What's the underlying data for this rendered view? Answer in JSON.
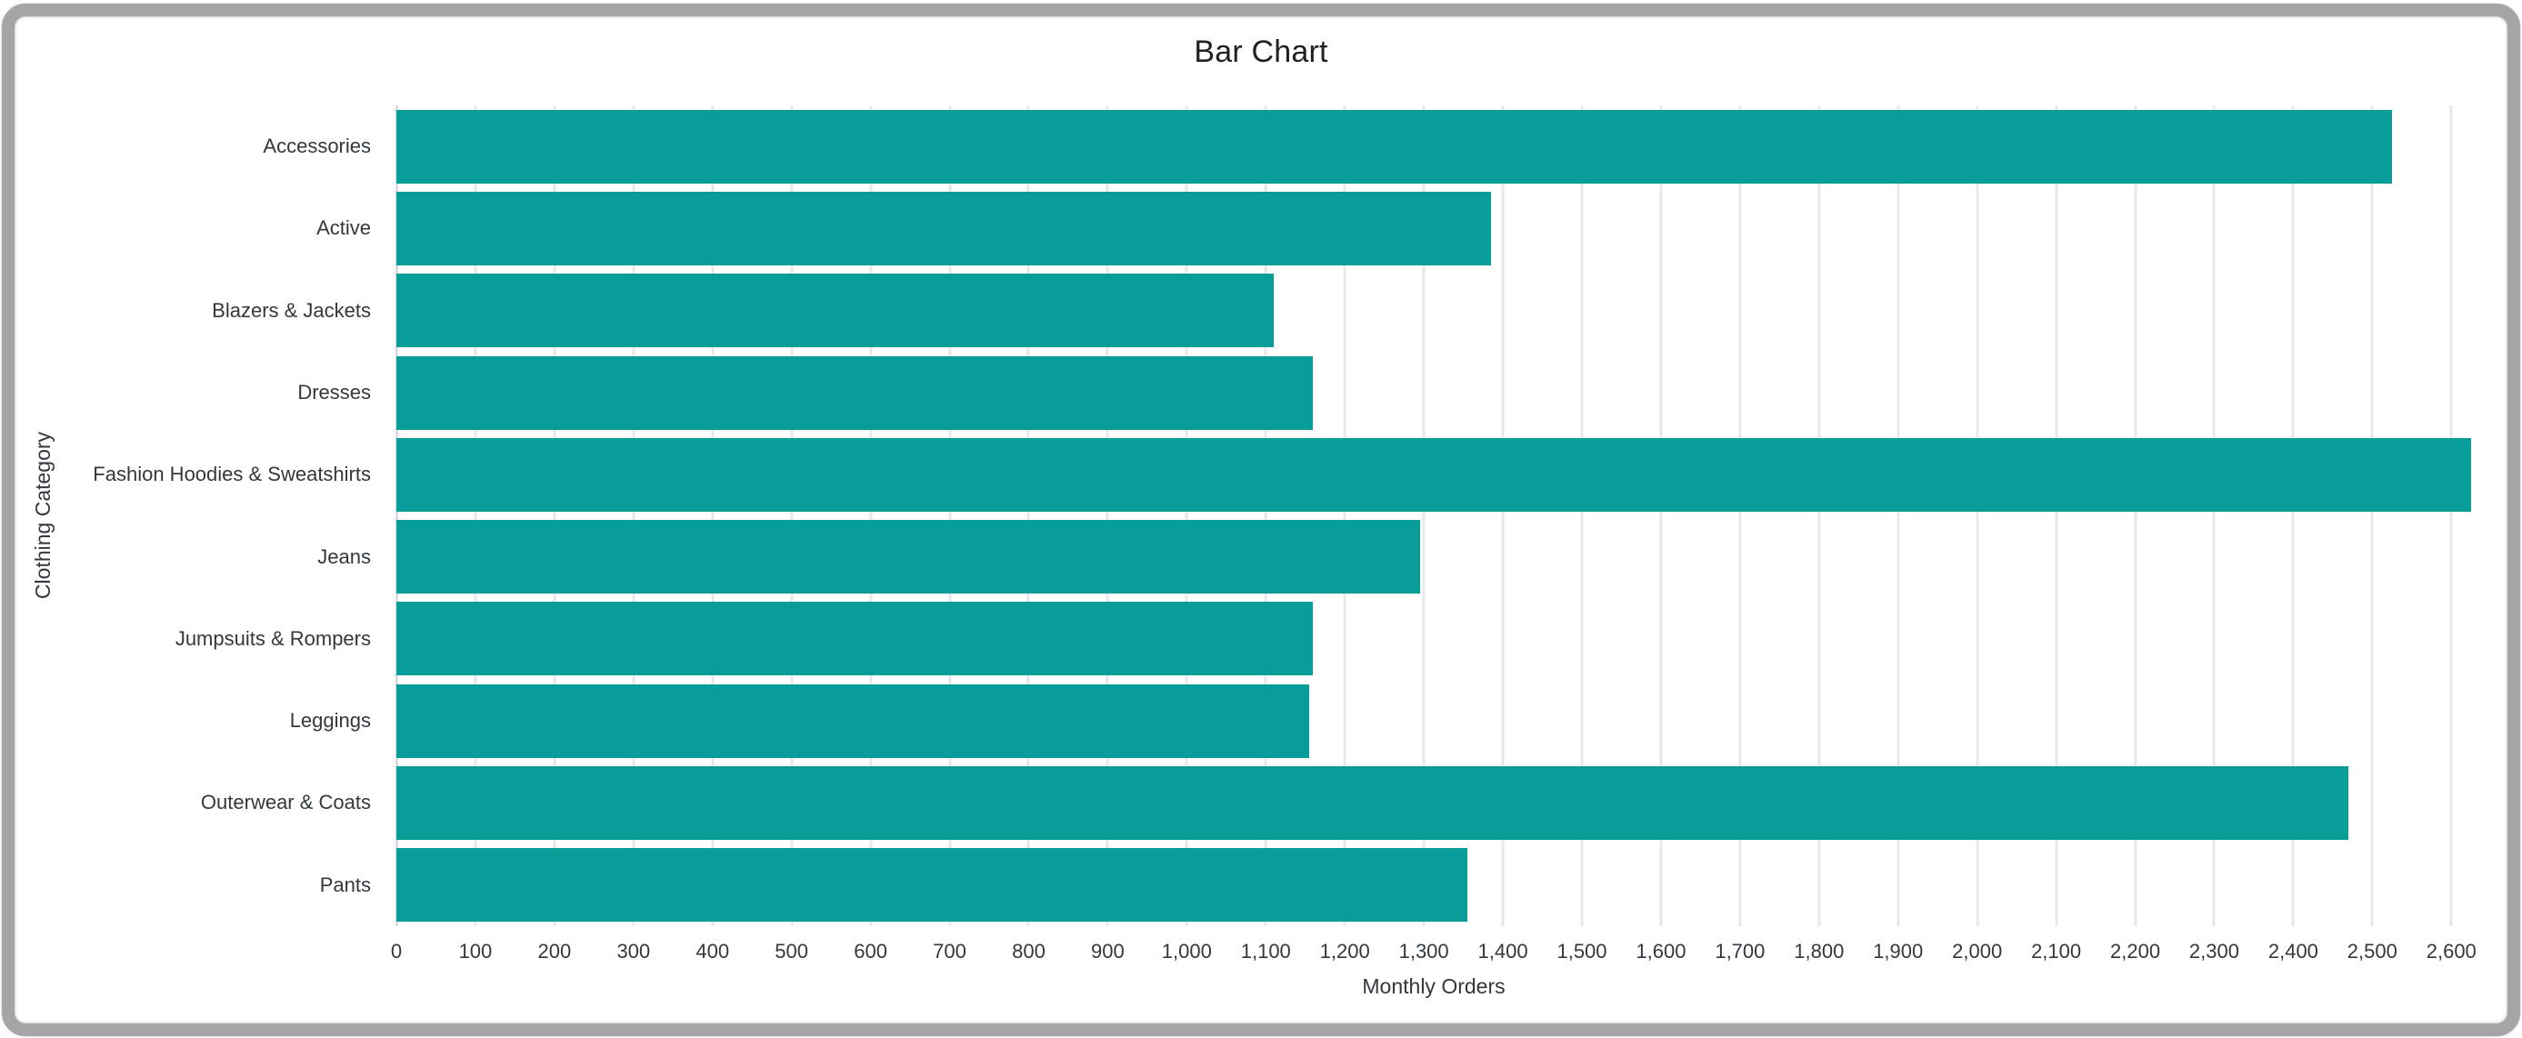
{
  "window": {
    "frame_style": "rounded-gray-border"
  },
  "chart_data": {
    "type": "bar",
    "orientation": "horizontal",
    "title": "Bar Chart",
    "xlabel": "Monthly Orders",
    "ylabel": "Clothing Category",
    "categories": [
      "Accessories",
      "Active",
      "Blazers & Jackets",
      "Dresses",
      "Fashion Hoodies & Sweatshirts",
      "Jeans",
      "Jumpsuits & Rompers",
      "Leggings",
      "Outerwear & Coats",
      "Pants"
    ],
    "values": [
      2525,
      1385,
      1110,
      1160,
      2625,
      1295,
      1160,
      1155,
      2470,
      1355
    ],
    "xlim": [
      0,
      2625
    ],
    "x_tick_interval": 100,
    "x_tick_labels": [
      "0",
      "100",
      "200",
      "300",
      "400",
      "500",
      "600",
      "700",
      "800",
      "900",
      "1,000",
      "1,100",
      "1,200",
      "1,300",
      "1,400",
      "1,500",
      "1,600",
      "1,700",
      "1,800",
      "1,900",
      "2,000",
      "2,100",
      "2,200",
      "2,300",
      "2,400",
      "2,500",
      "2,600"
    ],
    "grid": true,
    "legend": false,
    "colors": {
      "bar": "#099d99",
      "grid": "#e8e8e8",
      "axis_line": "#d9dde6",
      "text": "#32383e",
      "title": "#202124",
      "frame": "#a5a5a5",
      "background": "#ffffff"
    }
  }
}
